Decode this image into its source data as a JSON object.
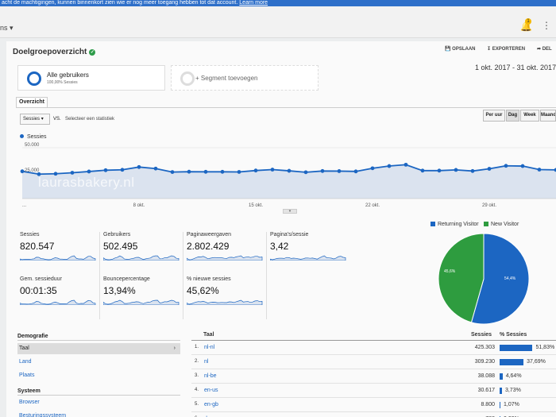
{
  "banner": {
    "text": "acht de machtigingen, kunnen binnenkort zien wie er nog meer toegang hebben tot dat account.",
    "link": "Learn more"
  },
  "topbar": {
    "crumb": "ns ▾",
    "notification_count": "1"
  },
  "report": {
    "title": "Doelgroepoverzicht",
    "actions": {
      "save": "OPSLAAN",
      "export": "EXPORTEREN",
      "share": "DEL"
    },
    "date_range": "1 okt. 2017 - 31 okt. 2017"
  },
  "segments": {
    "active": {
      "name": "Alle gebruikers",
      "sub": "100,00% Sessies"
    },
    "add_label": "+ Segment toevoegen"
  },
  "tabs": {
    "overview": "Overzicht"
  },
  "controls": {
    "metric": "Sessies",
    "vs": "VS.",
    "compare": "Selecteer een statistiek",
    "granularity": [
      "Per uur",
      "Dag",
      "Week",
      "Maand"
    ],
    "granularity_active": "Dag"
  },
  "watermark": "laurasbakery.nl",
  "chart_data": [
    {
      "type": "line",
      "series": [
        {
          "name": "Sessies",
          "values": [
            26800,
            24000,
            24400,
            25400,
            26600,
            27900,
            28300,
            31000,
            29500,
            26100,
            26400,
            26300,
            26300,
            26200,
            27600,
            28500,
            27300,
            25900,
            27100,
            27000,
            26700,
            29800,
            32000,
            33300,
            27500,
            27500,
            28200,
            27100,
            29300,
            32200,
            32000,
            28500,
            28200
          ]
        }
      ],
      "x_tick_labels": [
        "...",
        "8 okt.",
        "15 okt.",
        "22 okt.",
        "29 okt."
      ],
      "y_tick_labels": [
        "50.000",
        "25.000"
      ],
      "ylim": [
        0,
        50000
      ],
      "grid": true,
      "legend": "top-left"
    },
    {
      "type": "pie",
      "categories": [
        "Returning Visitor",
        "New Visitor"
      ],
      "values": [
        54.4,
        45.6
      ],
      "labels": [
        "54,4%",
        "45,6%"
      ],
      "colors": [
        "#1c66c2",
        "#2e9c3f"
      ],
      "legend": "top"
    }
  ],
  "metrics": [
    {
      "label": "Sessies",
      "value": "820.547"
    },
    {
      "label": "Gebruikers",
      "value": "502.495"
    },
    {
      "label": "Paginaweergaven",
      "value": "2.802.429"
    },
    {
      "label": "Pagina's/sessie",
      "value": "3,42"
    },
    {
      "label": "Gem. sessieduur",
      "value": "00:01:35"
    },
    {
      "label": "Bouncepercentage",
      "value": "13,94%"
    },
    {
      "label": "% nieuwe sessies",
      "value": "45,62%"
    }
  ],
  "dimensions": {
    "demography_title": "Demografie",
    "demography": [
      "Taal",
      "Land",
      "Plaats"
    ],
    "system_title": "Systeem",
    "system": [
      "Browser",
      "Besturingssysteem"
    ]
  },
  "table": {
    "headers": {
      "lang": "Taal",
      "sessions": "Sessies",
      "pct": "% Sessies"
    },
    "rows": [
      {
        "num": "1.",
        "lang": "nl-nl",
        "sessions": "425.303",
        "pct": "51,83%",
        "share": 51.83
      },
      {
        "num": "2.",
        "lang": "nl",
        "sessions": "309.230",
        "pct": "37,69%",
        "share": 37.69
      },
      {
        "num": "3.",
        "lang": "nl-be",
        "sessions": "38.088",
        "pct": "4,64%",
        "share": 4.64
      },
      {
        "num": "4.",
        "lang": "en-us",
        "sessions": "30.617",
        "pct": "3,73%",
        "share": 3.73
      },
      {
        "num": "5.",
        "lang": "en-gb",
        "sessions": "8.800",
        "pct": "1,07%",
        "share": 1.07
      },
      {
        "num": "6.",
        "lang": "de",
        "sessions": "768",
        "pct": "0,09%",
        "share": 0.09
      }
    ]
  },
  "colors": {
    "accent": "#1c66c2",
    "positive": "#2e9c3f",
    "banner": "#2e6fc9"
  }
}
